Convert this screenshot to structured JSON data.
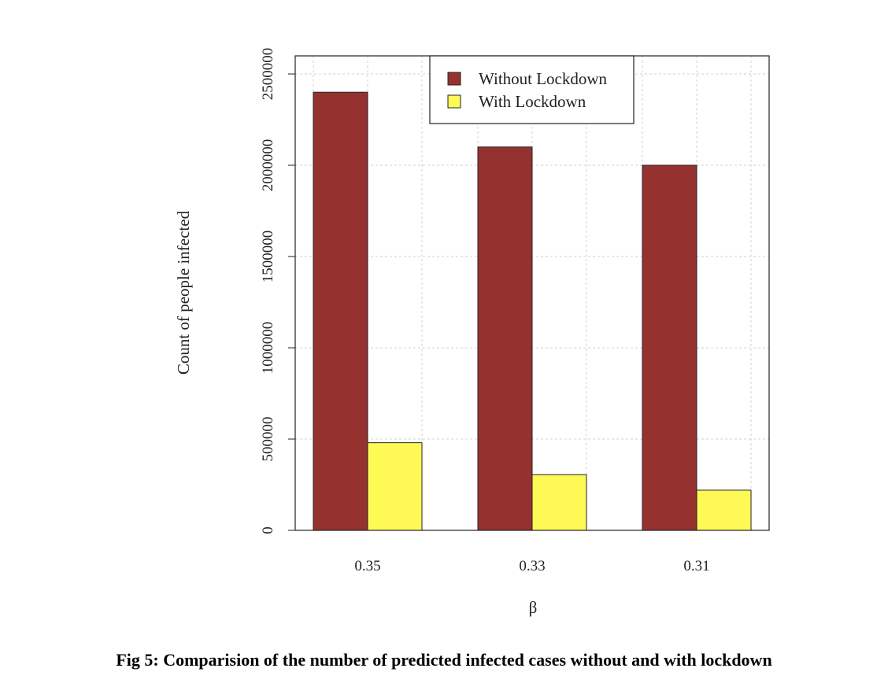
{
  "caption": "Fig 5: Comparision of the number of predicted infected cases without and with lockdown",
  "chart_data": {
    "type": "bar",
    "title": "",
    "xlabel": "β",
    "ylabel": "Count of people infected",
    "categories": [
      "0.35",
      "0.33",
      "0.31"
    ],
    "series": [
      {
        "name": "Without Lockdown",
        "color": "#953230",
        "values": [
          2400000,
          2100000,
          2000000
        ]
      },
      {
        "name": "With Lockdown",
        "color": "#FFF955",
        "values": [
          480000,
          305000,
          220000
        ]
      }
    ],
    "ylim": [
      0,
      2500000
    ],
    "yticks": [
      "0",
      "500000",
      "1000000",
      "1500000",
      "2000000",
      "2500000"
    ],
    "grid": true,
    "legend_position": "top-center"
  }
}
